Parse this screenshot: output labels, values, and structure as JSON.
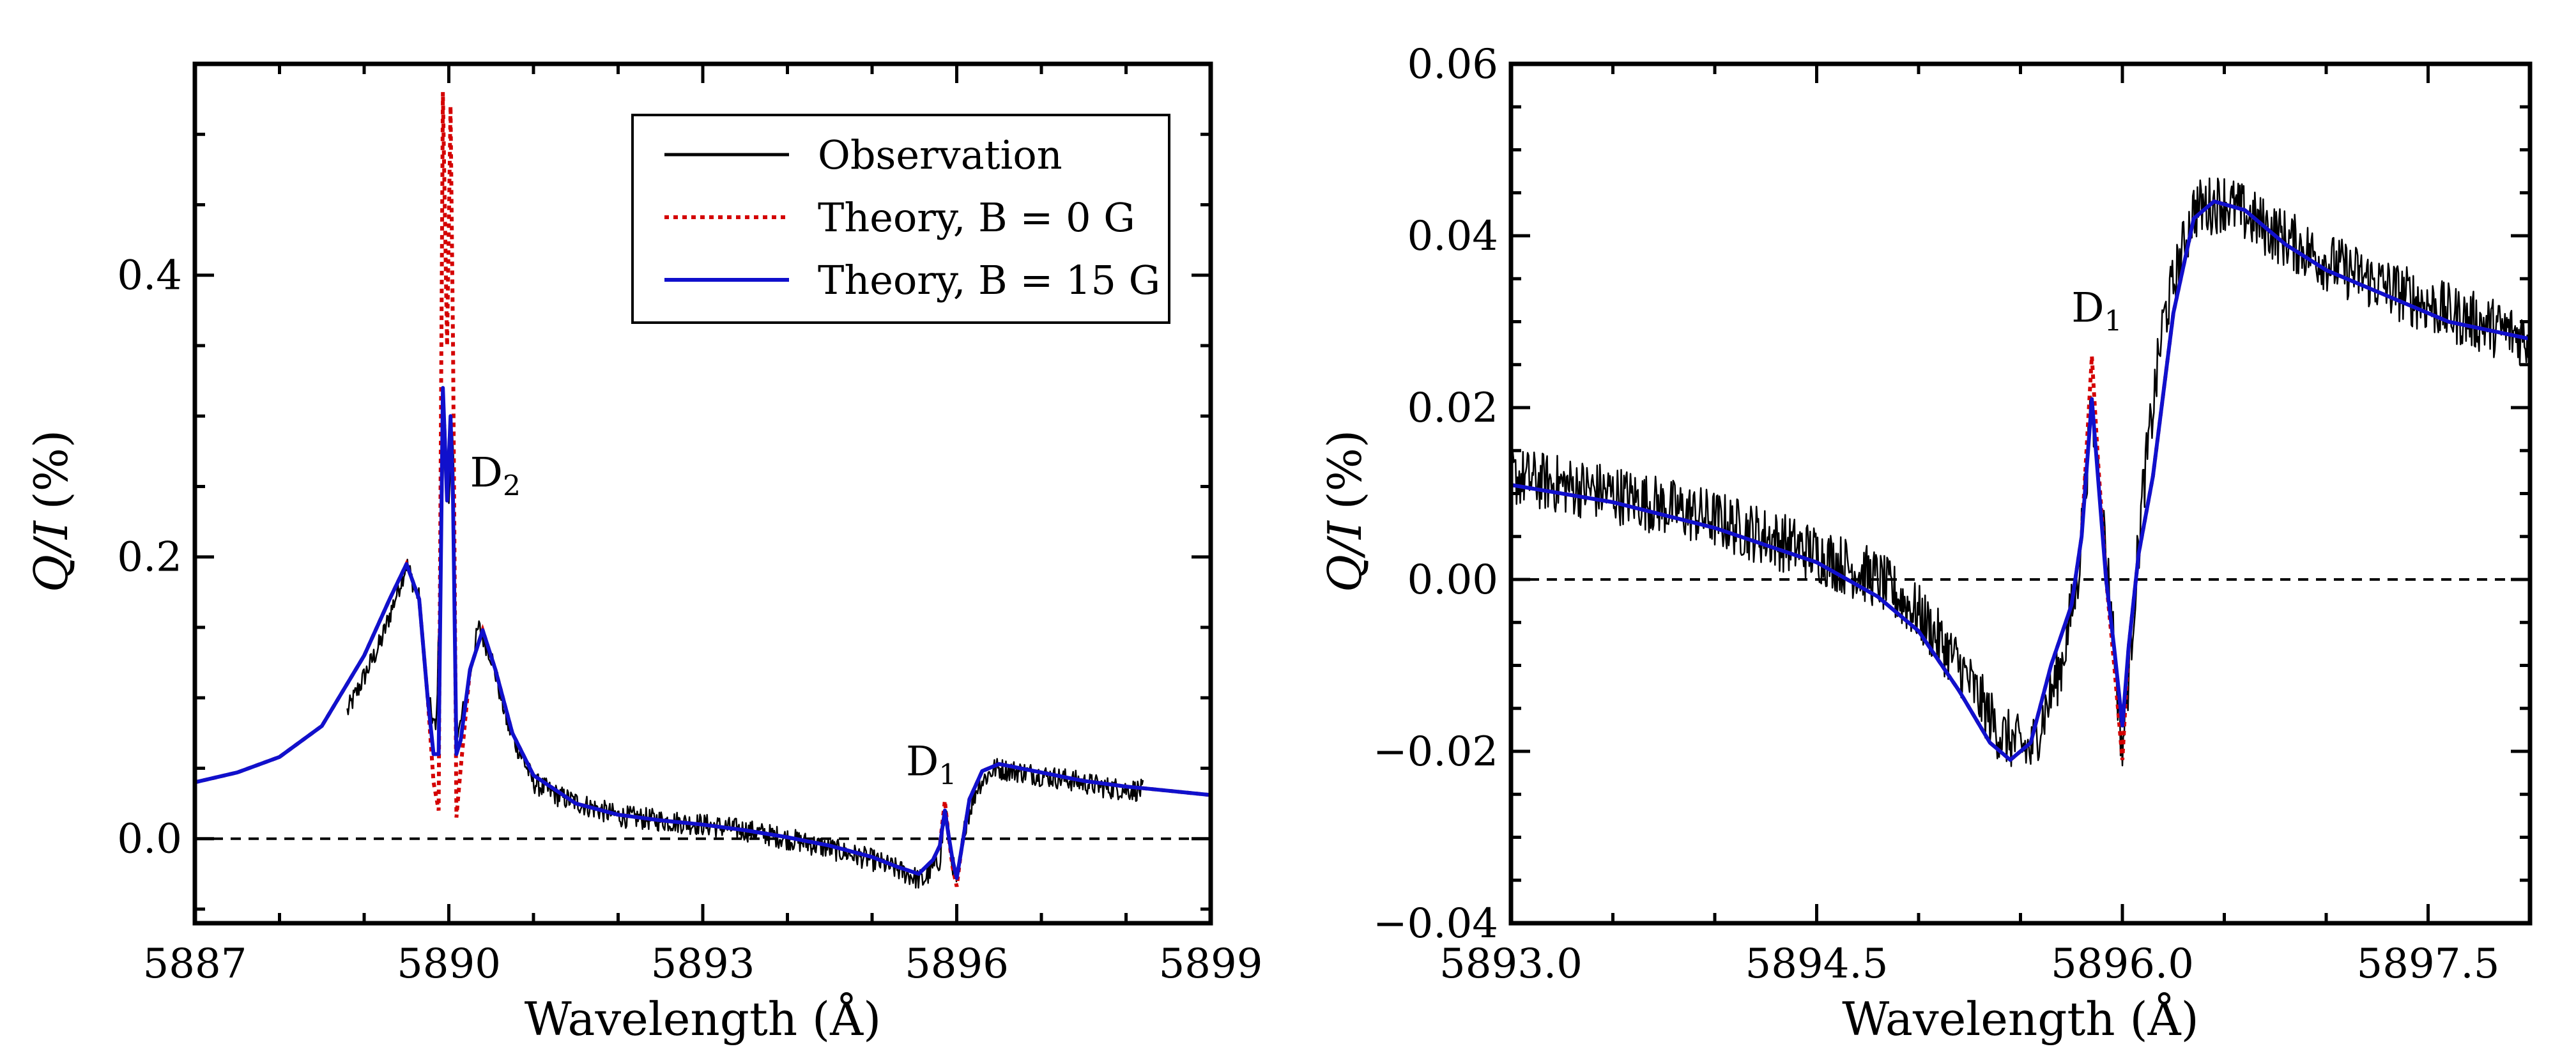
{
  "chart_data": [
    {
      "type": "line",
      "xlabel": "Wavelength (Å)",
      "ylabel_main": "Q/I",
      "ylabel_unit": "(%)",
      "xlim": [
        5887,
        5899
      ],
      "ylim": [
        -0.06,
        0.55
      ],
      "xticks": [
        5887,
        5890,
        5893,
        5896,
        5899
      ],
      "xtick_labels": [
        "5887",
        "5890",
        "5893",
        "5896",
        "5899"
      ],
      "yticks": [
        0.0,
        0.2,
        0.4
      ],
      "ytick_labels": [
        "0.0",
        "0.2",
        "0.4"
      ],
      "annotations": [
        {
          "text": "D",
          "sub": "2",
          "x": 5890.25,
          "y": 0.25
        },
        {
          "text": "D",
          "sub": "1",
          "x": 5895.4,
          "y": 0.045
        }
      ],
      "legend": {
        "placement": "top-right",
        "entries": [
          {
            "label": "Observation",
            "style": "obs"
          },
          {
            "label": "Theory, B = 0 G",
            "style": "red"
          },
          {
            "label": "Theory, B = 15 G",
            "style": "blue"
          }
        ]
      },
      "series": [
        {
          "name": "Observation",
          "range": [
            5888.8,
            5898.2
          ],
          "x": [
            5888.8,
            5889.2,
            5889.5,
            5889.65,
            5889.75,
            5889.85,
            5889.95,
            5890.0,
            5890.05,
            5890.1,
            5890.2,
            5890.35,
            5890.5,
            5890.7,
            5891.0,
            5891.3,
            5891.7,
            5892.0,
            5892.5,
            5893.0,
            5893.5,
            5894.0,
            5894.5,
            5895.0,
            5895.3,
            5895.6,
            5895.8,
            5895.87,
            5895.93,
            5896.0,
            5896.1,
            5896.25,
            5896.45,
            5896.8,
            5897.3,
            5897.8,
            5898.2
          ],
          "y": [
            0.09,
            0.14,
            0.195,
            0.17,
            0.1,
            0.075,
            0.3,
            0.24,
            0.285,
            0.07,
            0.1,
            0.15,
            0.13,
            0.08,
            0.04,
            0.03,
            0.022,
            0.016,
            0.013,
            0.01,
            0.006,
            0.0,
            -0.007,
            -0.015,
            -0.022,
            -0.03,
            -0.015,
            0.022,
            -0.012,
            -0.03,
            0.01,
            0.038,
            0.05,
            0.047,
            0.042,
            0.036,
            0.034
          ],
          "noise": 0.008
        },
        {
          "name": "Theory, B = 0 G",
          "x": [
            5887.0,
            5887.5,
            5888.0,
            5888.5,
            5889.0,
            5889.3,
            5889.5,
            5889.65,
            5889.75,
            5889.82,
            5889.88,
            5889.93,
            5889.98,
            5890.02,
            5890.05,
            5890.09,
            5890.14,
            5890.25,
            5890.4,
            5890.55,
            5890.75,
            5891.0,
            5891.5,
            5892.0,
            5892.5,
            5893.0,
            5893.5,
            5894.0,
            5894.5,
            5895.0,
            5895.3,
            5895.55,
            5895.72,
            5895.8,
            5895.86,
            5895.9,
            5895.95,
            5896.0,
            5896.05,
            5896.15,
            5896.3,
            5896.5,
            5897.0,
            5897.5,
            5898.0,
            5898.5,
            5899.0
          ],
          "y": [
            0.04,
            0.047,
            0.058,
            0.08,
            0.13,
            0.17,
            0.195,
            0.17,
            0.1,
            0.04,
            0.02,
            0.53,
            0.35,
            0.52,
            0.35,
            0.015,
            0.05,
            0.12,
            0.148,
            0.12,
            0.075,
            0.045,
            0.025,
            0.017,
            0.013,
            0.01,
            0.006,
            0.001,
            -0.005,
            -0.013,
            -0.02,
            -0.025,
            -0.015,
            -0.005,
            0.027,
            0.004,
            -0.02,
            -0.034,
            -0.01,
            0.028,
            0.048,
            0.053,
            0.047,
            0.041,
            0.037,
            0.034,
            0.031
          ]
        },
        {
          "name": "Theory, B = 15 G",
          "x": [
            5887.0,
            5887.5,
            5888.0,
            5888.5,
            5889.0,
            5889.3,
            5889.5,
            5889.65,
            5889.75,
            5889.82,
            5889.88,
            5889.93,
            5889.98,
            5890.02,
            5890.05,
            5890.09,
            5890.14,
            5890.25,
            5890.4,
            5890.55,
            5890.75,
            5891.0,
            5891.5,
            5892.0,
            5892.5,
            5893.0,
            5893.5,
            5894.0,
            5894.5,
            5895.0,
            5895.3,
            5895.55,
            5895.72,
            5895.8,
            5895.86,
            5895.9,
            5895.95,
            5896.0,
            5896.05,
            5896.15,
            5896.3,
            5896.5,
            5897.0,
            5897.5,
            5898.0,
            5898.5,
            5899.0
          ],
          "y": [
            0.04,
            0.047,
            0.058,
            0.08,
            0.13,
            0.17,
            0.195,
            0.17,
            0.1,
            0.06,
            0.06,
            0.32,
            0.24,
            0.3,
            0.24,
            0.06,
            0.07,
            0.12,
            0.148,
            0.12,
            0.075,
            0.045,
            0.025,
            0.017,
            0.013,
            0.01,
            0.006,
            0.001,
            -0.005,
            -0.013,
            -0.02,
            -0.025,
            -0.015,
            -0.005,
            0.02,
            0.004,
            -0.015,
            -0.028,
            -0.01,
            0.028,
            0.048,
            0.053,
            0.047,
            0.041,
            0.037,
            0.034,
            0.031
          ]
        }
      ]
    },
    {
      "type": "line",
      "xlabel": "Wavelength (Å)",
      "ylabel_main": "Q/I",
      "ylabel_unit": "(%)",
      "xlim": [
        5893.0,
        5898.0
      ],
      "ylim": [
        -0.04,
        0.06
      ],
      "xticks": [
        5893.0,
        5894.5,
        5896.0,
        5897.5
      ],
      "xtick_labels": [
        "5893.0",
        "5894.5",
        "5896.0",
        "5897.5"
      ],
      "yticks": [
        -0.04,
        -0.02,
        0.0,
        0.02,
        0.04,
        0.06
      ],
      "ytick_labels": [
        "−0.04",
        "−0.02",
        "0.00",
        "0.02",
        "0.04",
        "0.06"
      ],
      "annotations": [
        {
          "text": "D",
          "sub": "1",
          "x": 5895.75,
          "y": 0.03
        }
      ],
      "series": [
        {
          "name": "Observation",
          "range": [
            5893.0,
            5898.0
          ],
          "x": [
            5893.0,
            5893.5,
            5894.0,
            5894.5,
            5894.8,
            5895.0,
            5895.2,
            5895.4,
            5895.55,
            5895.7,
            5895.78,
            5895.85,
            5895.9,
            5895.95,
            5896.0,
            5896.05,
            5896.1,
            5896.2,
            5896.35,
            5896.5,
            5896.7,
            5897.0,
            5897.3,
            5897.6,
            5898.0
          ],
          "y": [
            0.012,
            0.01,
            0.007,
            0.003,
            0.0,
            -0.004,
            -0.01,
            -0.018,
            -0.02,
            -0.01,
            0.0,
            0.02,
            0.008,
            -0.005,
            -0.02,
            -0.005,
            0.01,
            0.03,
            0.043,
            0.044,
            0.041,
            0.037,
            0.034,
            0.031,
            0.028
          ],
          "noise": 0.0035
        },
        {
          "name": "Theory, B = 0 G",
          "x": [
            5893.0,
            5893.5,
            5894.0,
            5894.5,
            5894.8,
            5895.0,
            5895.2,
            5895.35,
            5895.45,
            5895.55,
            5895.65,
            5895.75,
            5895.8,
            5895.85,
            5895.88,
            5895.92,
            5895.96,
            5896.0,
            5896.03,
            5896.08,
            5896.15,
            5896.25,
            5896.35,
            5896.45,
            5896.6,
            5896.8,
            5897.0,
            5897.3,
            5897.6,
            5898.0
          ],
          "y": [
            0.011,
            0.009,
            0.006,
            0.002,
            -0.002,
            -0.006,
            -0.013,
            -0.019,
            -0.021,
            -0.019,
            -0.01,
            -0.003,
            0.005,
            0.026,
            0.014,
            0.0,
            -0.01,
            -0.021,
            -0.008,
            0.003,
            0.012,
            0.031,
            0.042,
            0.044,
            0.043,
            0.039,
            0.036,
            0.033,
            0.03,
            0.028
          ]
        },
        {
          "name": "Theory, B = 15 G",
          "x": [
            5893.0,
            5893.5,
            5894.0,
            5894.5,
            5894.8,
            5895.0,
            5895.2,
            5895.35,
            5895.45,
            5895.55,
            5895.65,
            5895.75,
            5895.8,
            5895.85,
            5895.88,
            5895.92,
            5895.96,
            5896.0,
            5896.03,
            5896.08,
            5896.15,
            5896.25,
            5896.35,
            5896.45,
            5896.6,
            5896.8,
            5897.0,
            5897.3,
            5897.6,
            5898.0
          ],
          "y": [
            0.011,
            0.009,
            0.006,
            0.002,
            -0.002,
            -0.006,
            -0.013,
            -0.019,
            -0.021,
            -0.019,
            -0.01,
            -0.003,
            0.005,
            0.021,
            0.012,
            0.0,
            -0.008,
            -0.017,
            -0.008,
            0.003,
            0.012,
            0.031,
            0.042,
            0.044,
            0.043,
            0.039,
            0.036,
            0.033,
            0.03,
            0.028
          ]
        }
      ]
    }
  ]
}
